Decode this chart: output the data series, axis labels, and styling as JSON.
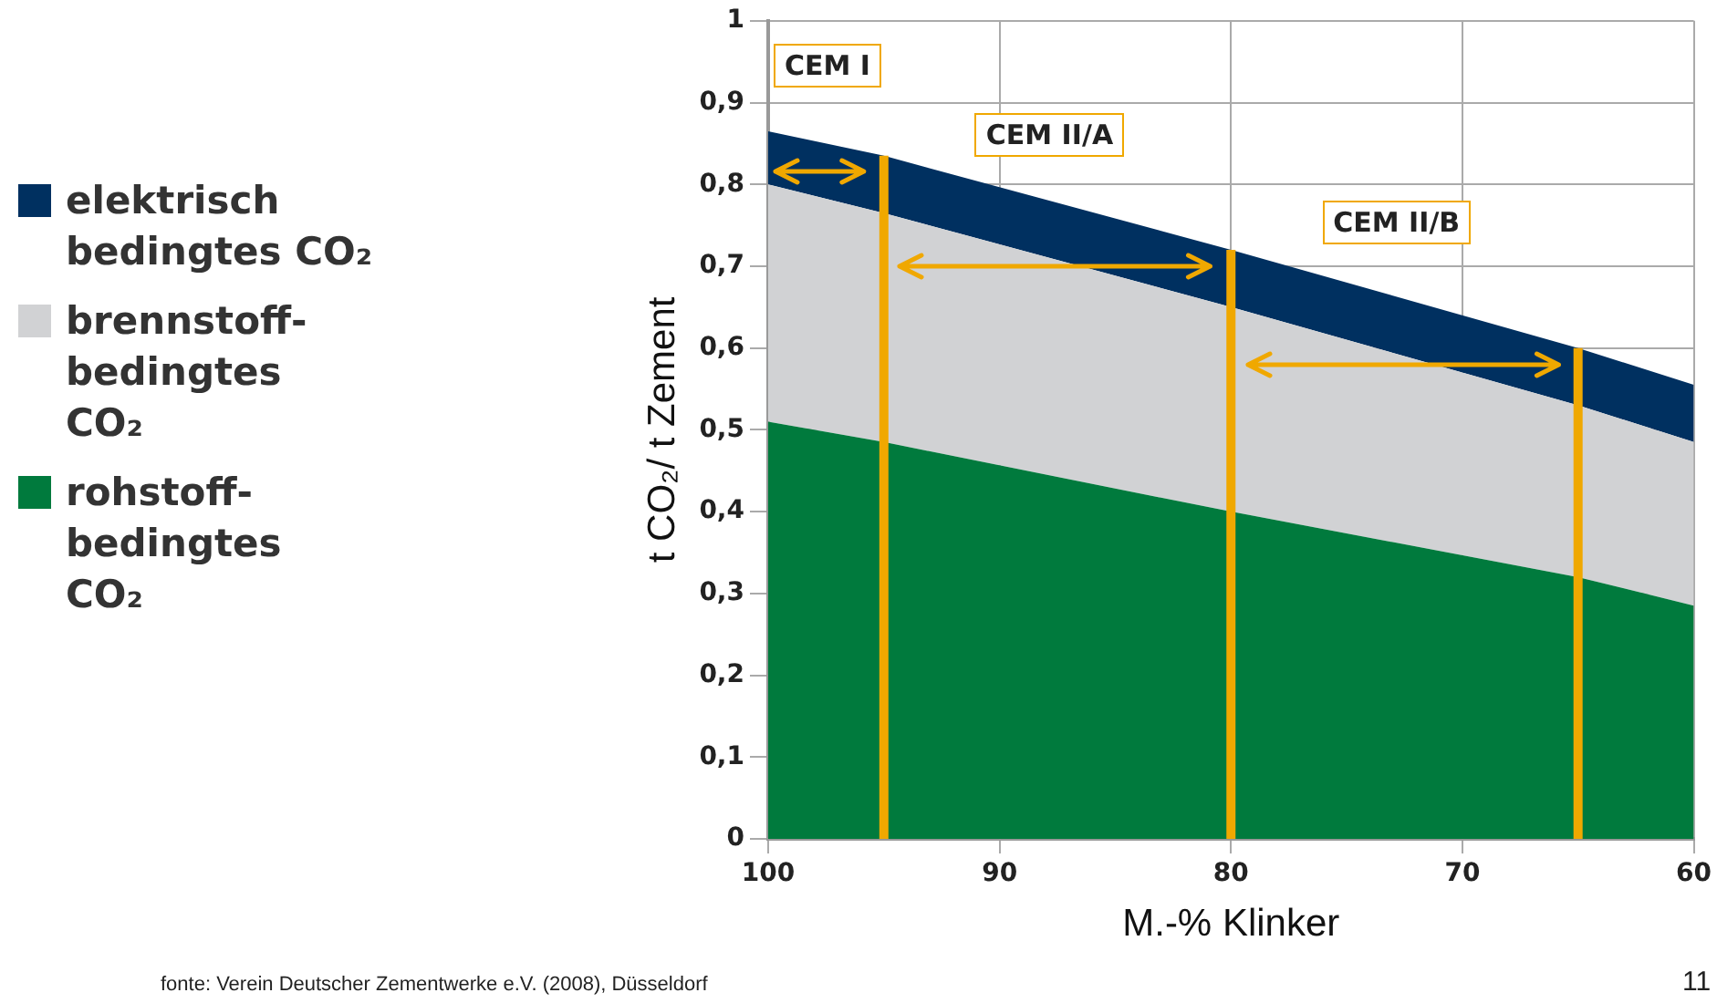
{
  "chart_data": {
    "type": "area",
    "xlabel": "M.-% Klinker",
    "ylabel": "t CO₂/ t Zement",
    "x": [
      100,
      95,
      80,
      65,
      60
    ],
    "series": [
      {
        "name": "rohstoff-bedingtes CO₂",
        "color": "#007a3d",
        "values": [
          0.51,
          0.485,
          0.4,
          0.32,
          0.285
        ]
      },
      {
        "name": "brennstoff-bedingtes CO₂",
        "color": "#d1d2d4",
        "values": [
          0.29,
          0.28,
          0.25,
          0.21,
          0.2
        ]
      },
      {
        "name": "elektrisch bedingtes CO₂",
        "color": "#003060",
        "values": [
          0.065,
          0.07,
          0.07,
          0.07,
          0.07
        ]
      }
    ],
    "stacked": true,
    "xlim": [
      100,
      60
    ],
    "xticks": [
      100,
      90,
      80,
      70,
      60
    ],
    "ylim": [
      0,
      1
    ],
    "yticks": [
      0,
      {
        "value": 0.1,
        "label": "0,1"
      },
      {
        "value": 0.2,
        "label": "0,2"
      },
      {
        "value": 0.3,
        "label": "0,3"
      },
      {
        "value": 0.4,
        "label": "0,4"
      },
      {
        "value": 0.5,
        "label": "0,5"
      },
      {
        "value": 0.6,
        "label": "0,6"
      },
      {
        "value": 0.7,
        "label": "0,7"
      },
      {
        "value": 0.8,
        "label": "0,8"
      },
      {
        "value": 0.9,
        "label": "0,9"
      },
      1
    ],
    "grid": true,
    "legend": "left",
    "ref_lines": [
      {
        "axis": "x",
        "value": 95,
        "color": "#f0a800"
      },
      {
        "axis": "x",
        "value": 80,
        "color": "#f0a800"
      },
      {
        "axis": "x",
        "value": 65,
        "color": "#f0a800"
      }
    ],
    "annotations": [
      "CEM I",
      "CEM II/A",
      "CEM II/B",
      "fonte: Verein Deutscher Zementwerke e.V. (2008), Düsseldorf",
      "11"
    ]
  }
}
